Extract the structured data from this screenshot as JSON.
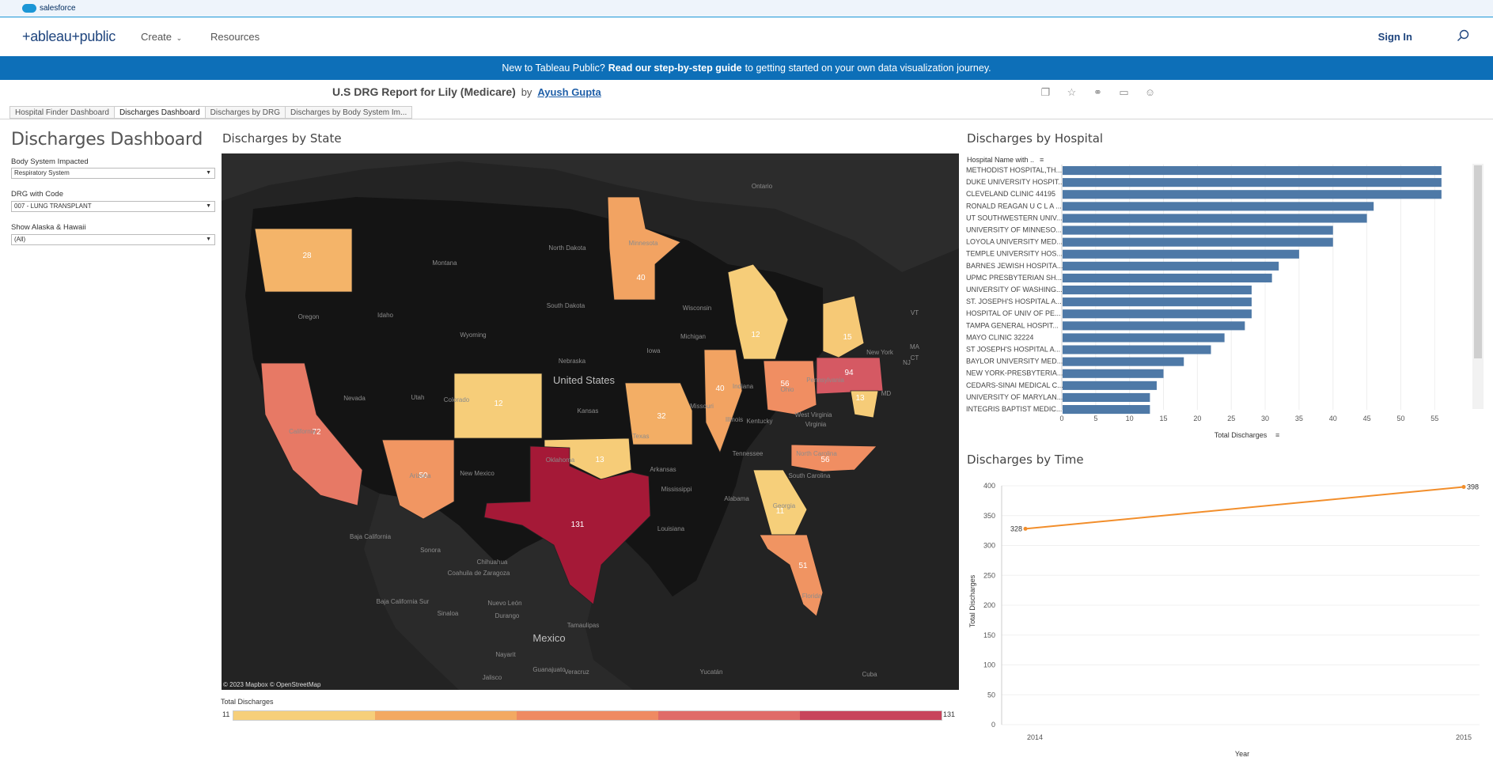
{
  "salesforce": {
    "label": "salesforce"
  },
  "nav": {
    "logo": "+ableau+public",
    "create": "Create",
    "resources": "Resources",
    "sign_in": "Sign In"
  },
  "banner": {
    "pre": "New to Tableau Public?",
    "link": "Read our step-by-step guide",
    "post": "to getting started on your own data visualization journey."
  },
  "viz": {
    "title": "U.S DRG Report for Lily (Medicare)",
    "by": "by",
    "author": "Ayush Gupta"
  },
  "tabs": [
    "Hospital Finder Dashboard",
    "Discharges Dashboard",
    "Discharges by DRG",
    "Discharges by Body System Im..."
  ],
  "active_tab": 1,
  "dashboard": {
    "title": "Discharges Dashboard",
    "filters": [
      {
        "label": "Body System Impacted",
        "value": "Respiratory System"
      },
      {
        "label": "DRG with Code",
        "value": "007 - LUNG TRANSPLANT"
      },
      {
        "label": "Show Alaska & Hawaii",
        "value": "(All)"
      }
    ]
  },
  "map": {
    "title": "Discharges by State",
    "credit": "© 2023 Mapbox  © OpenStreetMap",
    "legend_title": "Total Discharges",
    "legend_min": "11",
    "legend_max": "131",
    "legend_colors": [
      "#f6cf7a",
      "#f3a962",
      "#ef8a62",
      "#e06b68",
      "#c8445c"
    ],
    "place_labels": [
      "Ontario",
      "Montana",
      "North Dakota",
      "Minnesota",
      "Wisconsin",
      "Michigan",
      "Oregon",
      "Idaho",
      "South Dakota",
      "Wyoming",
      "Iowa",
      "Nebraska",
      "United States",
      "Nevada",
      "Utah",
      "Colorado",
      "Kansas",
      "Missouri",
      "Illinois",
      "Indiana",
      "Ohio",
      "Pennsylvania",
      "New York",
      "West Virginia",
      "Virginia",
      "Kentucky",
      "California",
      "Arizona",
      "New Mexico",
      "Oklahoma",
      "Arkansas",
      "Tennessee",
      "North Carolina",
      "South Carolina",
      "Mississippi",
      "Alabama",
      "Georgia",
      "Louisiana",
      "Texas",
      "Florida",
      "Baja California",
      "Sonora",
      "Chihuahua",
      "Coahuila de Zaragoza",
      "Nuevo León",
      "Baja California Sur",
      "Sinaloa",
      "Durango",
      "Tamaulipas",
      "Mexico",
      "Nayarit",
      "Jalisco",
      "Guanajuato",
      "Veracruz",
      "Yucatán",
      "Cuba",
      "VT",
      "MA",
      "CT",
      "NJ",
      "MD"
    ],
    "states": [
      {
        "name": "Washington",
        "value": 28
      },
      {
        "name": "Minnesota",
        "value": 40
      },
      {
        "name": "Michigan",
        "value": 12
      },
      {
        "name": "New York",
        "value": 15
      },
      {
        "name": "Pennsylvania",
        "value": 94
      },
      {
        "name": "Maryland",
        "value": 13
      },
      {
        "name": "Ohio",
        "value": 56
      },
      {
        "name": "Illinois",
        "value": 40
      },
      {
        "name": "Missouri",
        "value": 32
      },
      {
        "name": "Colorado",
        "value": 12
      },
      {
        "name": "California",
        "value": 72
      },
      {
        "name": "Arizona",
        "value": 50
      },
      {
        "name": "Oklahoma",
        "value": 13
      },
      {
        "name": "Texas",
        "value": 131
      },
      {
        "name": "North Carolina",
        "value": 56
      },
      {
        "name": "Georgia",
        "value": 11
      },
      {
        "name": "Florida",
        "value": 51
      }
    ]
  },
  "chart_data": [
    {
      "type": "bar",
      "title": "Discharges by Hospital",
      "ylabel": "Hospital Name with ..",
      "xlabel": "Total Discharges",
      "xlim": [
        0,
        58
      ],
      "ticks": [
        0,
        5,
        10,
        15,
        20,
        25,
        30,
        35,
        40,
        45,
        50,
        55
      ],
      "color": "#4e79a7",
      "categories": [
        "METHODIST HOSPITAL,TH...",
        "DUKE UNIVERSITY HOSPIT...",
        "CLEVELAND CLINIC 44195",
        "RONALD REAGAN U C L A ...",
        "UT SOUTHWESTERN UNIV...",
        "UNIVERSITY OF MINNESO...",
        "LOYOLA UNIVERSITY MED...",
        "TEMPLE UNIVERSITY HOS...",
        "BARNES JEWISH HOSPITA...",
        "UPMC PRESBYTERIAN SH...",
        "UNIVERSITY OF WASHING...",
        "ST. JOSEPH'S HOSPITAL A...",
        "HOSPITAL OF UNIV OF PE...",
        "TAMPA GENERAL HOSPIT...",
        "MAYO CLINIC 32224",
        "ST JOSEPH'S HOSPITAL A...",
        "BAYLOR UNIVERSITY MED...",
        "NEW YORK-PRESBYTERIA...",
        "CEDARS-SINAI MEDICAL C...",
        "UNIVERSITY OF MARYLAN...",
        "INTEGRIS BAPTIST MEDIC..."
      ],
      "values": [
        56,
        56,
        56,
        46,
        45,
        40,
        40,
        35,
        32,
        31,
        28,
        28,
        28,
        27,
        24,
        22,
        18,
        15,
        14,
        13,
        13
      ]
    },
    {
      "type": "line",
      "title": "Discharges by Time",
      "xlabel": "Year",
      "ylabel": "Total Discharges",
      "ylim": [
        0,
        400
      ],
      "yticks": [
        0,
        50,
        100,
        150,
        200,
        250,
        300,
        350,
        400
      ],
      "color": "#f28e2b",
      "x": [
        "2014",
        "2015"
      ],
      "values": [
        328,
        398
      ]
    }
  ]
}
